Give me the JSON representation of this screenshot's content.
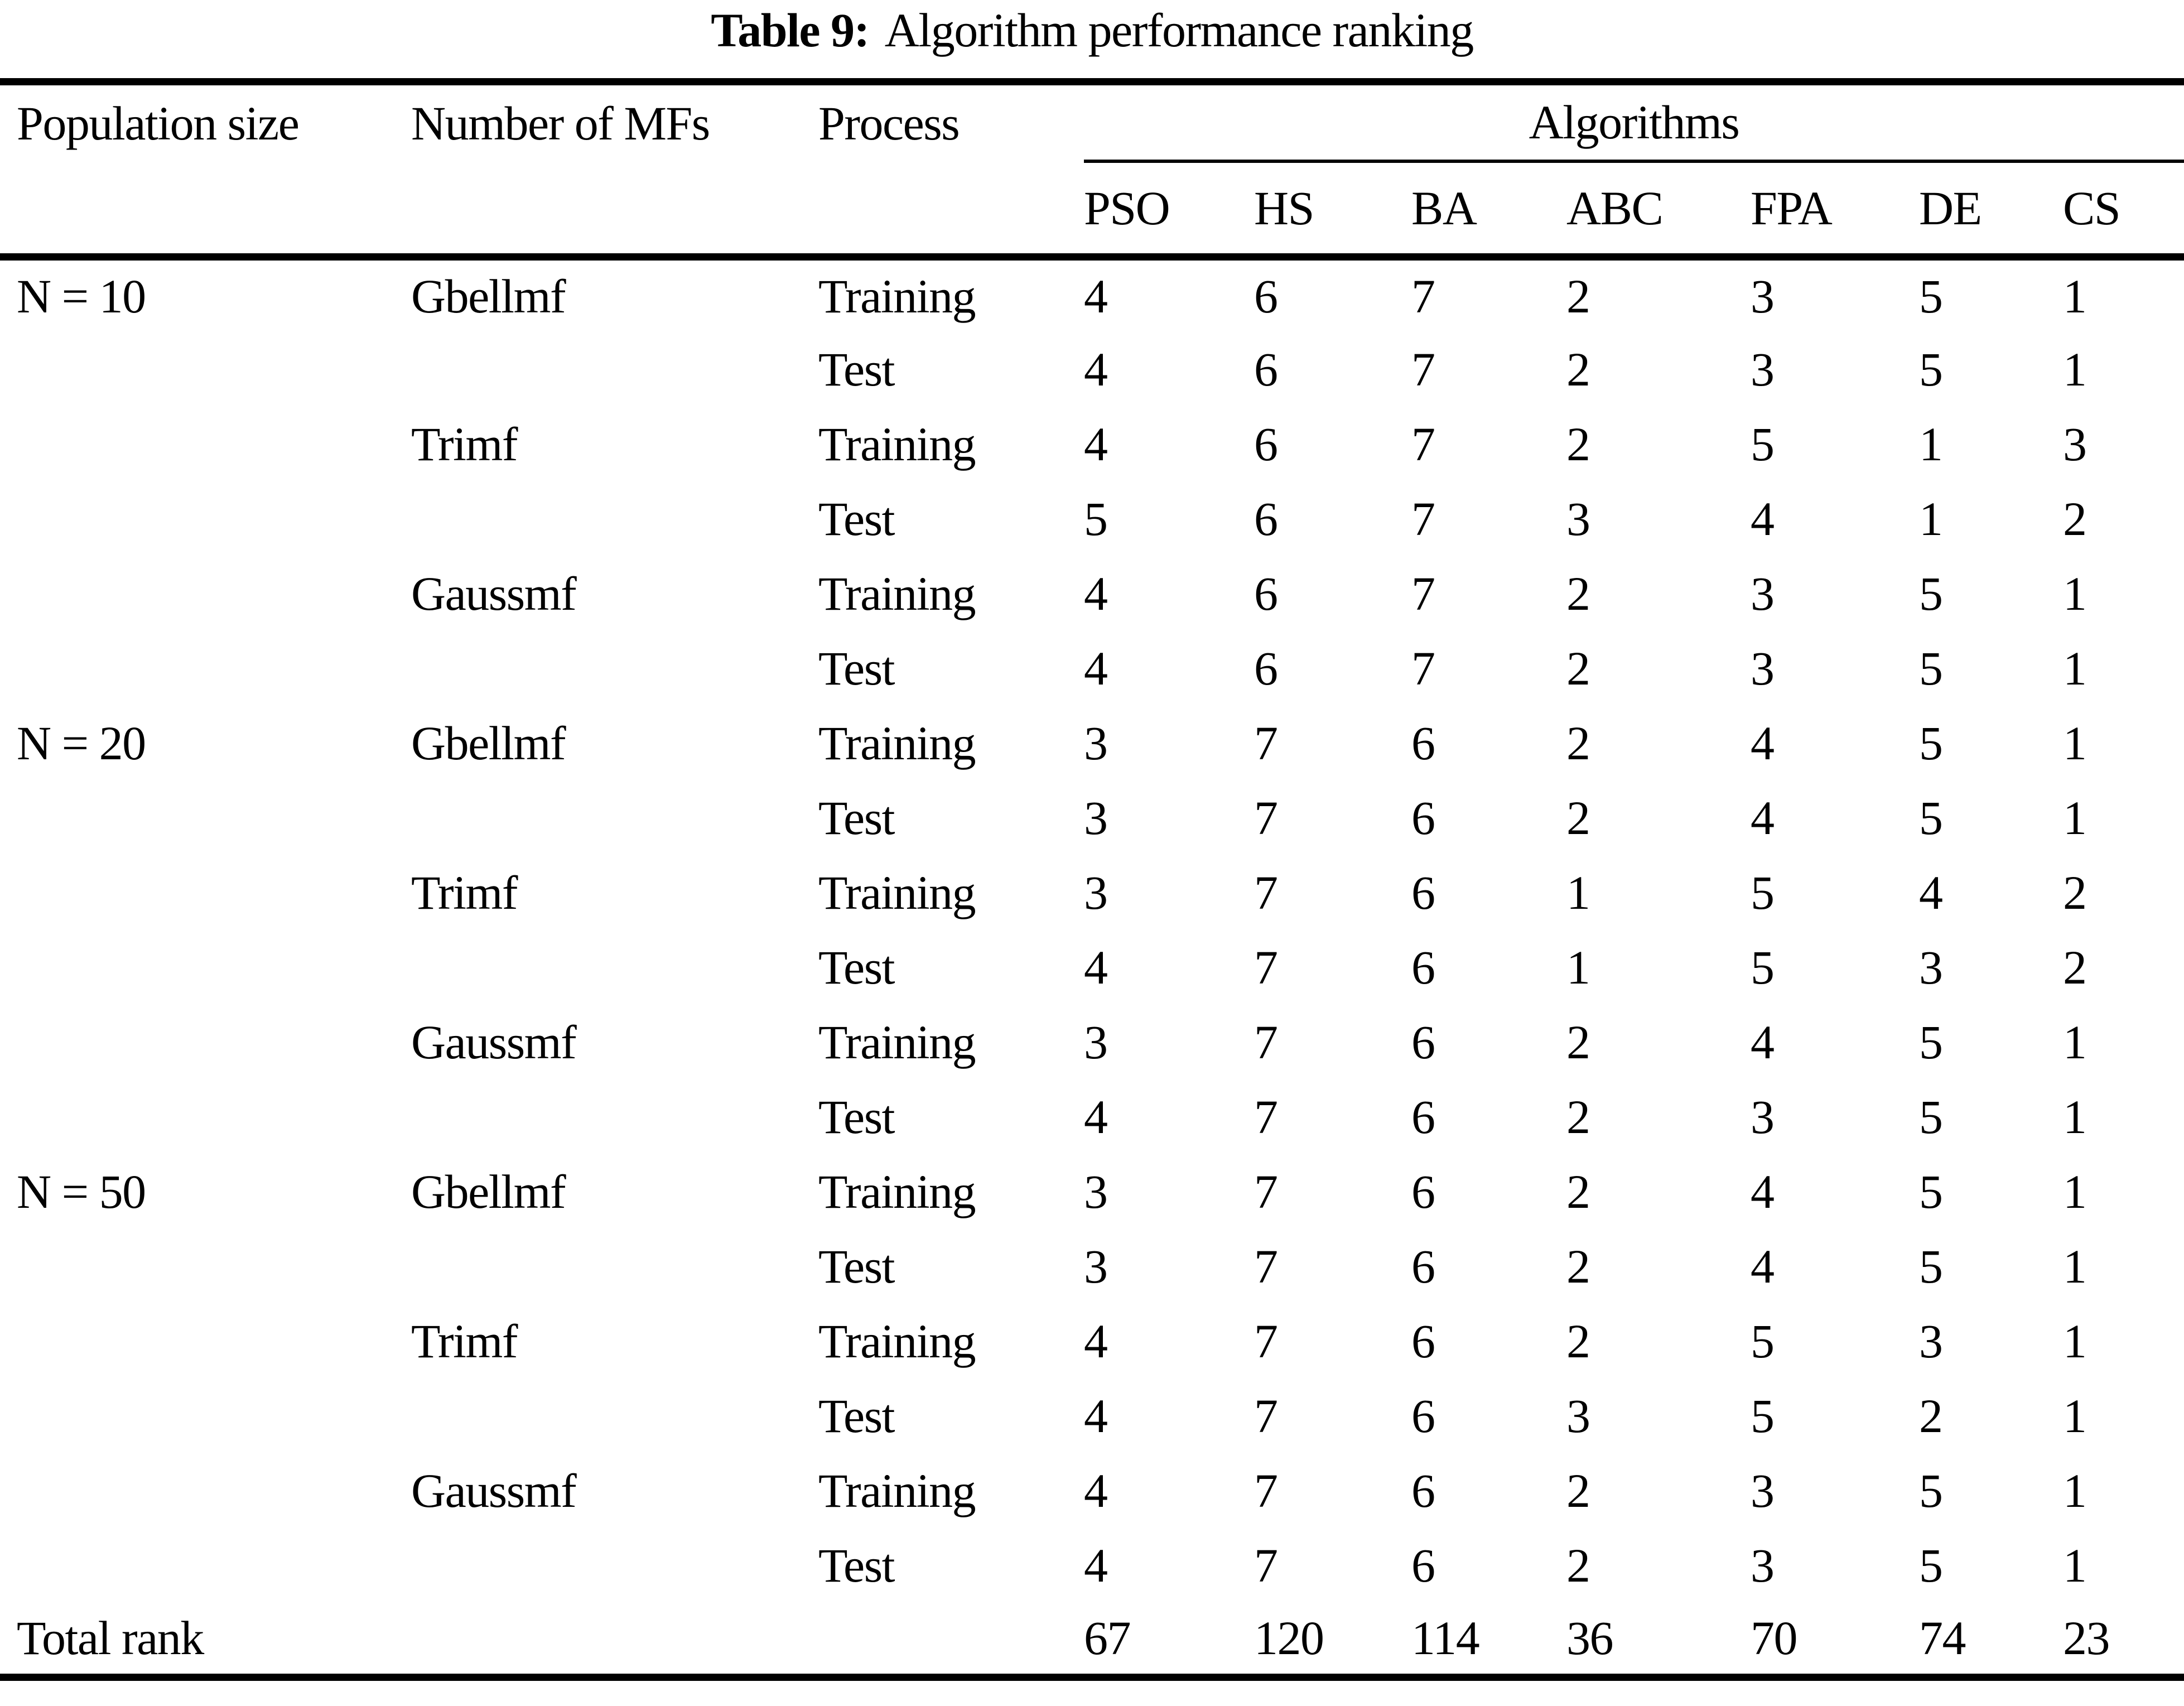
{
  "title": {
    "label": "Table 9:",
    "text": "Algorithm performance ranking"
  },
  "colors": {
    "text": "#000000",
    "background": "#ffffff",
    "rule": "#000000"
  },
  "table": {
    "col_headers": {
      "population": "Population size",
      "mfs": "Number of MFs",
      "process": "Process",
      "algorithms_group": "Algorithms",
      "algorithms": [
        "PSO",
        "HS",
        "BA",
        "ABC",
        "FPA",
        "DE",
        "CS"
      ]
    },
    "rows": [
      {
        "population": "N = 10",
        "mf": "Gbellmf",
        "process": "Training",
        "values": [
          4,
          6,
          7,
          2,
          3,
          5,
          1
        ]
      },
      {
        "population": "",
        "mf": "",
        "process": "Test",
        "values": [
          4,
          6,
          7,
          2,
          3,
          5,
          1
        ]
      },
      {
        "population": "",
        "mf": "Trimf",
        "process": "Training",
        "values": [
          4,
          6,
          7,
          2,
          5,
          1,
          3
        ]
      },
      {
        "population": "",
        "mf": "",
        "process": "Test",
        "values": [
          5,
          6,
          7,
          3,
          4,
          1,
          2
        ]
      },
      {
        "population": "",
        "mf": "Gaussmf",
        "process": "Training",
        "values": [
          4,
          6,
          7,
          2,
          3,
          5,
          1
        ]
      },
      {
        "population": "",
        "mf": "",
        "process": "Test",
        "values": [
          4,
          6,
          7,
          2,
          3,
          5,
          1
        ]
      },
      {
        "population": "N = 20",
        "mf": "Gbellmf",
        "process": "Training",
        "values": [
          3,
          7,
          6,
          2,
          4,
          5,
          1
        ]
      },
      {
        "population": "",
        "mf": "",
        "process": "Test",
        "values": [
          3,
          7,
          6,
          2,
          4,
          5,
          1
        ]
      },
      {
        "population": "",
        "mf": "Trimf",
        "process": "Training",
        "values": [
          3,
          7,
          6,
          1,
          5,
          4,
          2
        ]
      },
      {
        "population": "",
        "mf": "",
        "process": "Test",
        "values": [
          4,
          7,
          6,
          1,
          5,
          3,
          2
        ]
      },
      {
        "population": "",
        "mf": "Gaussmf",
        "process": "Training",
        "values": [
          3,
          7,
          6,
          2,
          4,
          5,
          1
        ]
      },
      {
        "population": "",
        "mf": "",
        "process": "Test",
        "values": [
          4,
          7,
          6,
          2,
          3,
          5,
          1
        ]
      },
      {
        "population": "N = 50",
        "mf": "Gbellmf",
        "process": "Training",
        "values": [
          3,
          7,
          6,
          2,
          4,
          5,
          1
        ]
      },
      {
        "population": "",
        "mf": "",
        "process": "Test",
        "values": [
          3,
          7,
          6,
          2,
          4,
          5,
          1
        ]
      },
      {
        "population": "",
        "mf": "Trimf",
        "process": "Training",
        "values": [
          4,
          7,
          6,
          2,
          5,
          3,
          1
        ]
      },
      {
        "population": "",
        "mf": "",
        "process": "Test",
        "values": [
          4,
          7,
          6,
          3,
          5,
          2,
          1
        ]
      },
      {
        "population": "",
        "mf": "Gaussmf",
        "process": "Training",
        "values": [
          4,
          7,
          6,
          2,
          3,
          5,
          1
        ]
      },
      {
        "population": "",
        "mf": "",
        "process": "Test",
        "values": [
          4,
          7,
          6,
          2,
          3,
          5,
          1
        ]
      }
    ],
    "total_row": {
      "label": "Total rank",
      "values": [
        67,
        120,
        114,
        36,
        70,
        74,
        23
      ]
    }
  }
}
